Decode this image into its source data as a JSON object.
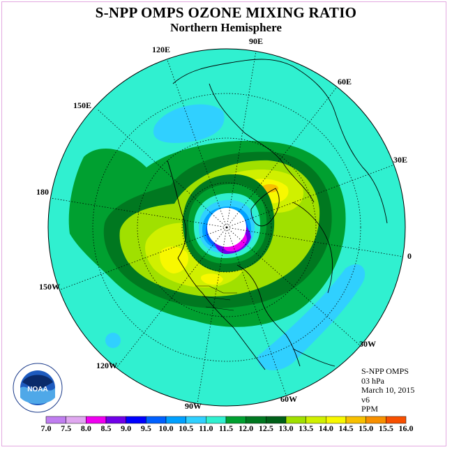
{
  "title": "S-NPP OMPS OZONE MIXING RATIO",
  "subtitle": "Northern Hemisphere",
  "longitude_labels": {
    "lon_90e": "90E",
    "lon_120e": "120E",
    "lon_60e": "60E",
    "lon_150e": "150E",
    "lon_30e": "30E",
    "lon_180": "180",
    "lon_0": "0",
    "lon_150w": "150W",
    "lon_30w": "30W",
    "lon_120w": "120W",
    "lon_60w": "60W",
    "lon_90w": "90W"
  },
  "info": {
    "instrument": "S-NPP OMPS",
    "level": "03 hPa",
    "date": "March 10, 2015",
    "version": "v6",
    "units": "PPM"
  },
  "logo_text": "NOAA",
  "colorbar": {
    "ticks": [
      "7.0",
      "7.5",
      "8.0",
      "8.5",
      "9.0",
      "9.5",
      "10.0",
      "10.5",
      "11.0",
      "11.5",
      "12.0",
      "12.5",
      "13.0",
      "13.5",
      "14.0",
      "14.5",
      "15.0",
      "15.5",
      "16.0"
    ],
    "colors": [
      "#c07ef0",
      "#e0a8f0",
      "#f000f0",
      "#7000e8",
      "#0000ff",
      "#0060ff",
      "#00a0ff",
      "#30d0ff",
      "#30f0d0",
      "#00a030",
      "#007820",
      "#006018",
      "#a0e000",
      "#d0f000",
      "#f8f800",
      "#f8c000",
      "#f89000",
      "#f85000",
      "#f80000",
      "#905030"
    ],
    "color_values": [
      "7.0-7.5",
      "7.5-8.0",
      "8.0-8.5",
      "8.5-9.0",
      "9.0-9.5",
      "9.5-10.0",
      "10.0-10.5",
      "10.5-11.0",
      "11.0-11.5",
      "11.5-12.0",
      "12.0-12.5",
      "12.5-13.0",
      "13.0-13.5",
      "13.5-14.0",
      "14.0-14.5",
      "14.5-15.0",
      "15.0-15.5",
      "15.5-16.0"
    ]
  }
}
